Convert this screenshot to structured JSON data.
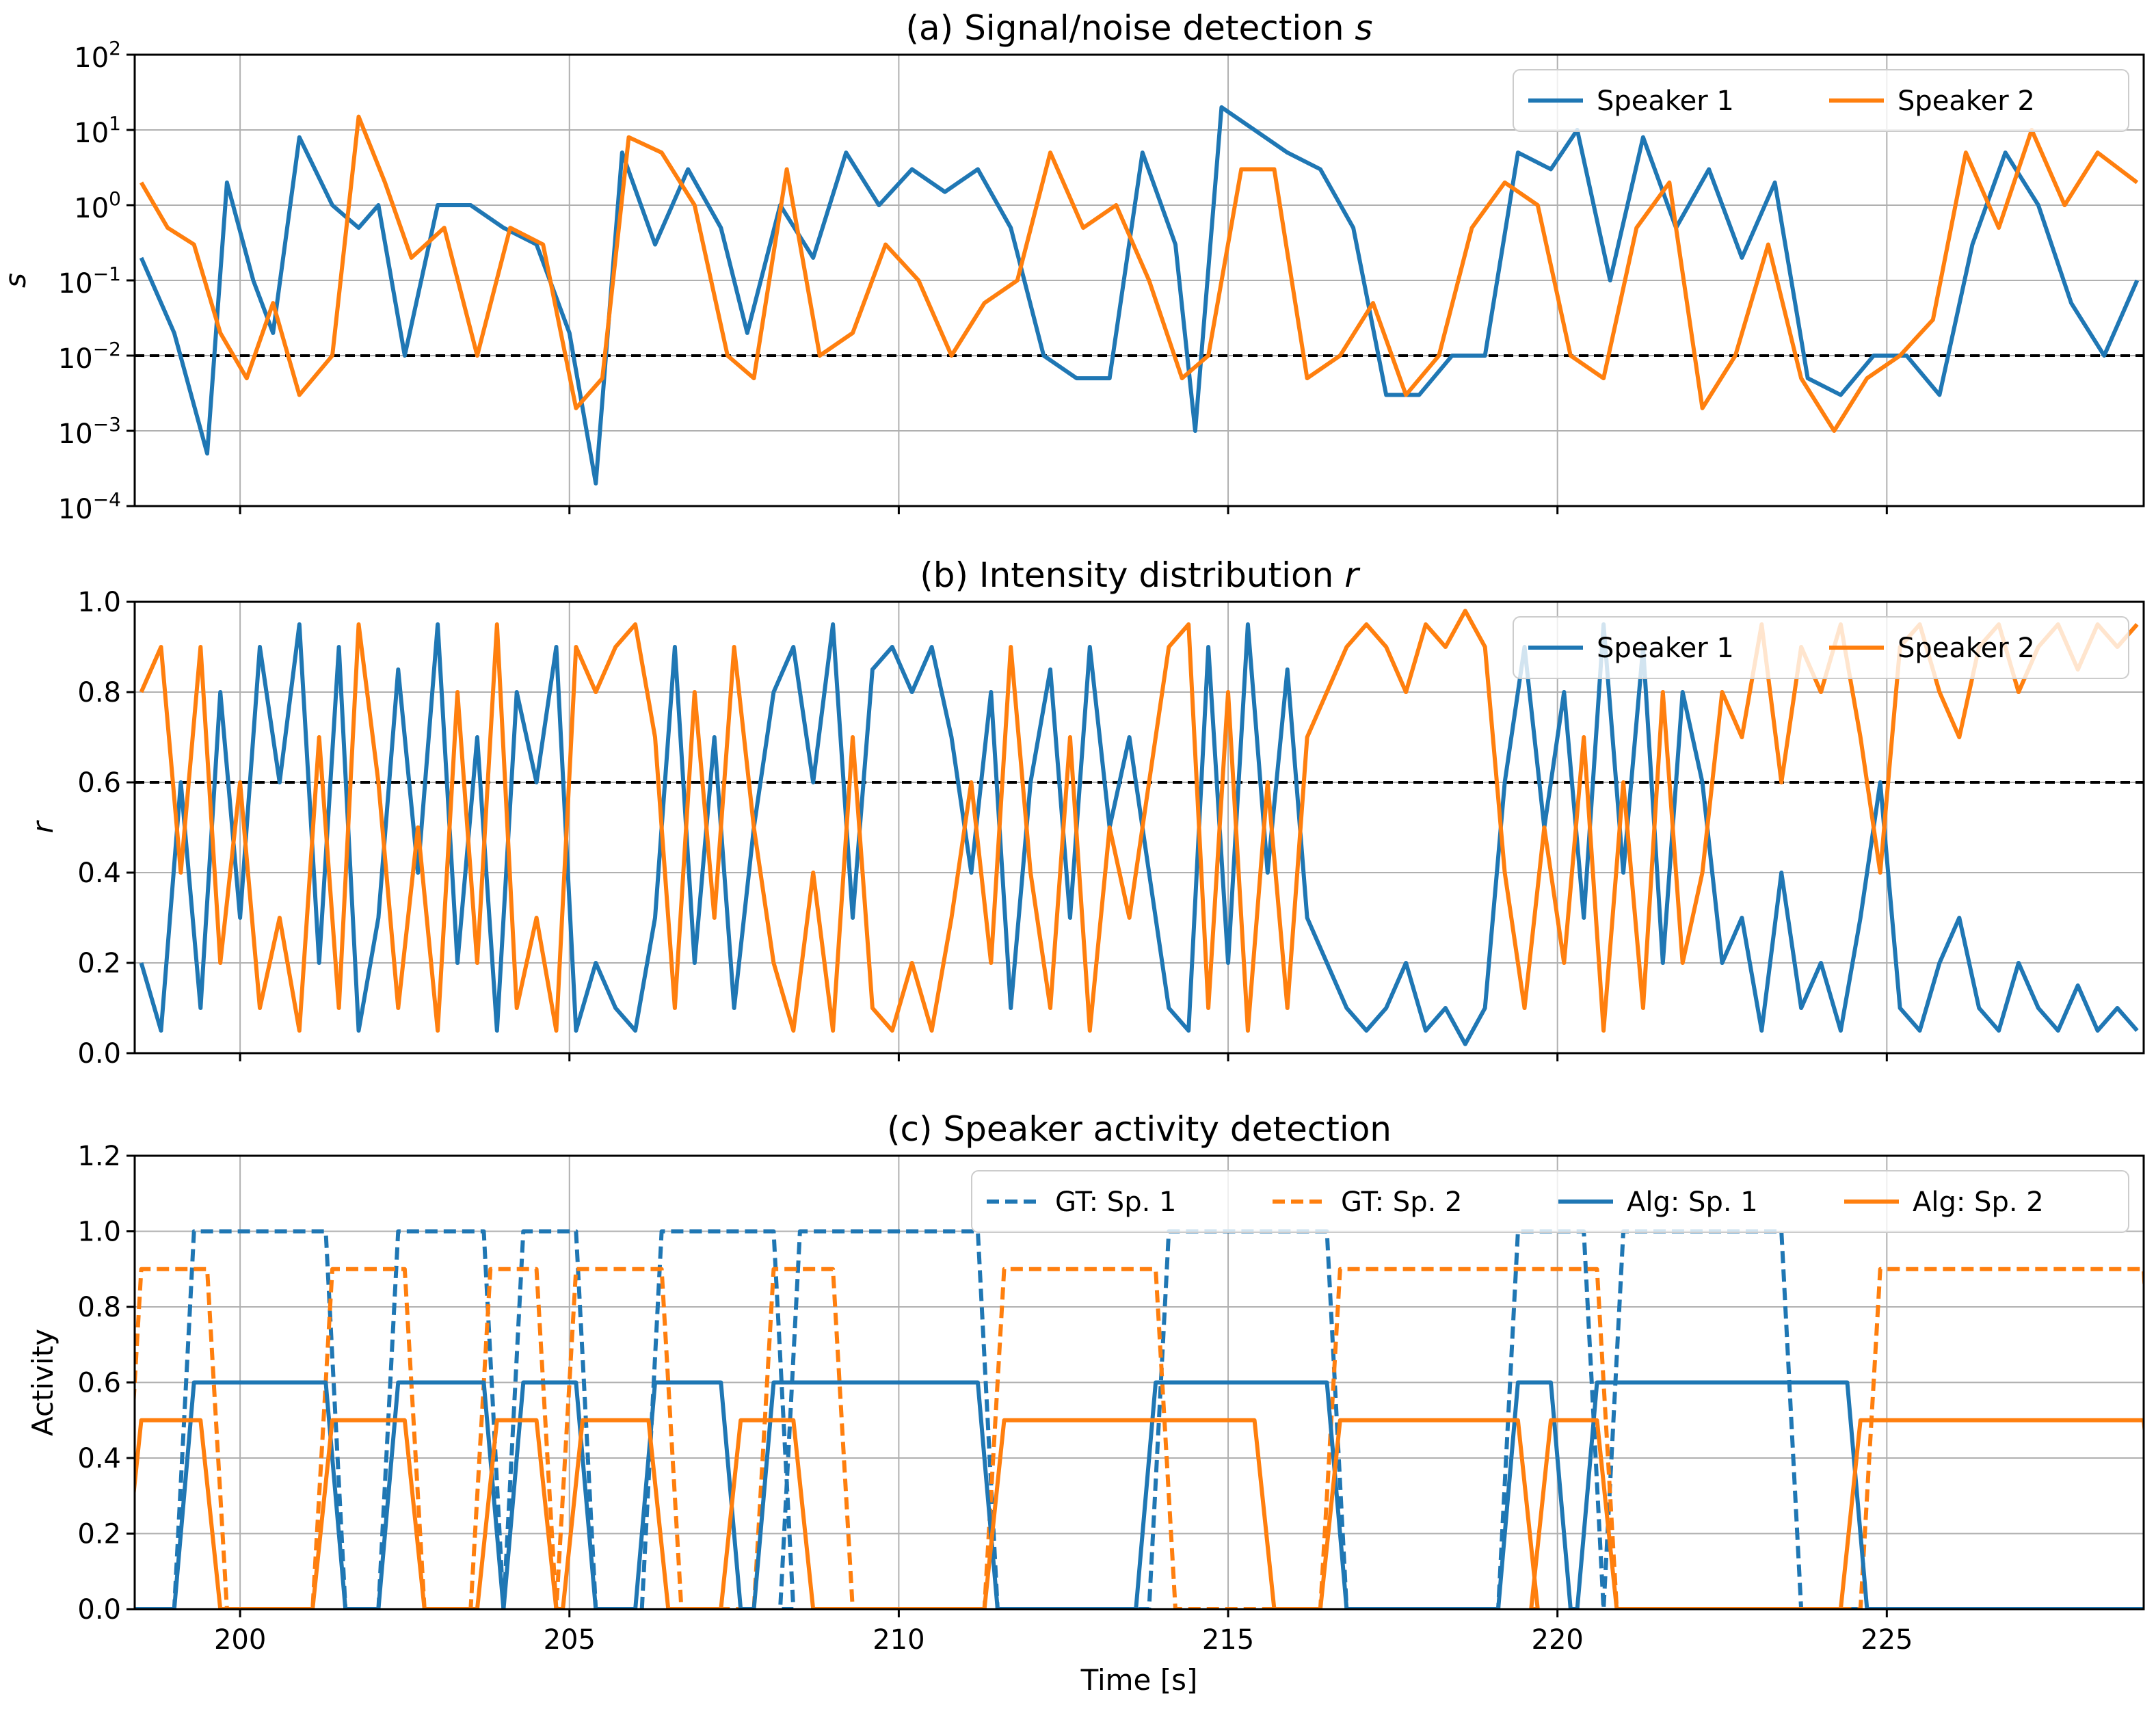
{
  "colors": {
    "speaker1": "#1f77b4",
    "speaker2": "#ff7f0e",
    "threshold": "#000000",
    "grid": "#b0b0b0"
  },
  "chart_data": [
    {
      "type": "line",
      "title": "(a) Signal/noise detection s",
      "xlabel": "",
      "ylabel": "s",
      "yscale": "log",
      "xlim": [
        198.4,
        228.9
      ],
      "ylim": [
        0.0001,
        100
      ],
      "xticks": [
        200,
        205,
        210,
        215,
        220,
        225
      ],
      "yticks": [
        "10^-4",
        "10^-3",
        "10^-2",
        "10^-1",
        "10^0",
        "10^1",
        "10^2"
      ],
      "grid": true,
      "legend_position": "top-right",
      "threshold": 0.01,
      "series": [
        {
          "name": "Speaker 1",
          "x": [
            198.5,
            199.0,
            199.5,
            199.8,
            200.2,
            200.5,
            200.9,
            201.4,
            201.8,
            202.1,
            202.5,
            203.0,
            203.5,
            204.0,
            204.5,
            205.0,
            205.4,
            205.8,
            206.3,
            206.8,
            207.3,
            207.7,
            208.2,
            208.7,
            209.2,
            209.7,
            210.2,
            210.7,
            211.2,
            211.7,
            212.2,
            212.7,
            213.2,
            213.7,
            214.2,
            214.5,
            214.9,
            215.4,
            215.9,
            216.4,
            216.9,
            217.4,
            217.9,
            218.4,
            218.9,
            219.4,
            219.9,
            220.3,
            220.8,
            221.3,
            221.8,
            222.3,
            222.8,
            223.3,
            223.8,
            224.3,
            224.8,
            225.3,
            225.8,
            226.3,
            226.8,
            227.3,
            227.8,
            228.3,
            228.8
          ],
          "y": [
            0.2,
            0.02,
            0.0005,
            2.0,
            0.1,
            0.02,
            8.0,
            1.0,
            0.5,
            1.0,
            0.01,
            1.0,
            1.0,
            0.5,
            0.3,
            0.02,
            0.0002,
            5.0,
            0.3,
            3.0,
            0.5,
            0.02,
            1.0,
            0.2,
            5.0,
            1.0,
            3.0,
            1.5,
            3.0,
            0.5,
            0.01,
            0.005,
            0.005,
            5.0,
            0.3,
            0.001,
            20.0,
            10.0,
            5.0,
            3.0,
            0.5,
            0.003,
            0.003,
            0.01,
            0.01,
            5.0,
            3.0,
            10.0,
            0.1,
            8.0,
            0.5,
            3.0,
            0.2,
            2.0,
            0.005,
            0.003,
            0.01,
            0.01,
            0.003,
            0.3,
            5.0,
            1.0,
            0.05,
            0.01,
            0.1
          ]
        },
        {
          "name": "Speaker 2",
          "x": [
            198.5,
            198.9,
            199.3,
            199.7,
            200.1,
            200.5,
            200.9,
            201.4,
            201.8,
            202.2,
            202.6,
            203.1,
            203.6,
            204.1,
            204.6,
            205.1,
            205.5,
            205.9,
            206.4,
            206.9,
            207.4,
            207.8,
            208.3,
            208.8,
            209.3,
            209.8,
            210.3,
            210.8,
            211.3,
            211.8,
            212.3,
            212.8,
            213.3,
            213.8,
            214.3,
            214.7,
            215.2,
            215.7,
            216.2,
            216.7,
            217.2,
            217.7,
            218.2,
            218.7,
            219.2,
            219.7,
            220.2,
            220.7,
            221.2,
            221.7,
            222.2,
            222.7,
            223.2,
            223.7,
            224.2,
            224.7,
            225.2,
            225.7,
            226.2,
            226.7,
            227.2,
            227.7,
            228.2,
            228.8
          ],
          "y": [
            2.0,
            0.5,
            0.3,
            0.02,
            0.005,
            0.05,
            0.003,
            0.01,
            15.0,
            2.0,
            0.2,
            0.5,
            0.01,
            0.5,
            0.3,
            0.002,
            0.005,
            8.0,
            5.0,
            1.0,
            0.01,
            0.005,
            3.0,
            0.01,
            0.02,
            0.3,
            0.1,
            0.01,
            0.05,
            0.1,
            5.0,
            0.5,
            1.0,
            0.1,
            0.005,
            0.01,
            3.0,
            3.0,
            0.005,
            0.01,
            0.05,
            0.003,
            0.01,
            0.5,
            2.0,
            1.0,
            0.01,
            0.005,
            0.5,
            2.0,
            0.002,
            0.01,
            0.3,
            0.005,
            0.001,
            0.005,
            0.01,
            0.03,
            5.0,
            0.5,
            10.0,
            1.0,
            5.0,
            2.0
          ]
        }
      ]
    },
    {
      "type": "line",
      "title": "(b) Intensity distribution r",
      "xlabel": "",
      "ylabel": "r",
      "xlim": [
        198.4,
        228.9
      ],
      "ylim": [
        0.0,
        1.0
      ],
      "xticks": [
        200,
        205,
        210,
        215,
        220,
        225
      ],
      "yticks": [
        "0.0",
        "0.2",
        "0.4",
        "0.6",
        "0.8",
        "1.0"
      ],
      "grid": true,
      "legend_position": "top-right",
      "threshold": 0.6,
      "series": [
        {
          "name": "Speaker 1",
          "x": [
            198.5,
            198.8,
            199.1,
            199.4,
            199.7,
            200.0,
            200.3,
            200.6,
            200.9,
            201.2,
            201.5,
            201.8,
            202.1,
            202.4,
            202.7,
            203.0,
            203.3,
            203.6,
            203.9,
            204.2,
            204.5,
            204.8,
            205.1,
            205.4,
            205.7,
            206.0,
            206.3,
            206.6,
            206.9,
            207.2,
            207.5,
            207.8,
            208.1,
            208.4,
            208.7,
            209.0,
            209.3,
            209.6,
            209.9,
            210.2,
            210.5,
            210.8,
            211.1,
            211.4,
            211.7,
            212.0,
            212.3,
            212.6,
            212.9,
            213.2,
            213.5,
            213.8,
            214.1,
            214.4,
            214.7,
            215.0,
            215.3,
            215.6,
            215.9,
            216.2,
            216.5,
            216.8,
            217.1,
            217.4,
            217.7,
            218.0,
            218.3,
            218.6,
            218.9,
            219.2,
            219.5,
            219.8,
            220.1,
            220.4,
            220.7,
            221.0,
            221.3,
            221.6,
            221.9,
            222.2,
            222.5,
            222.8,
            223.1,
            223.4,
            223.7,
            224.0,
            224.3,
            224.6,
            224.9,
            225.2,
            225.5,
            225.8,
            226.1,
            226.4,
            226.7,
            227.0,
            227.3,
            227.6,
            227.9,
            228.2,
            228.5,
            228.8
          ],
          "y": [
            0.2,
            0.05,
            0.6,
            0.1,
            0.8,
            0.3,
            0.9,
            0.6,
            0.95,
            0.2,
            0.9,
            0.05,
            0.3,
            0.85,
            0.4,
            0.95,
            0.2,
            0.7,
            0.05,
            0.8,
            0.6,
            0.9,
            0.05,
            0.2,
            0.1,
            0.05,
            0.3,
            0.9,
            0.2,
            0.7,
            0.1,
            0.5,
            0.8,
            0.9,
            0.6,
            0.95,
            0.3,
            0.85,
            0.9,
            0.8,
            0.9,
            0.7,
            0.4,
            0.8,
            0.1,
            0.6,
            0.85,
            0.3,
            0.9,
            0.5,
            0.7,
            0.4,
            0.1,
            0.05,
            0.9,
            0.2,
            0.95,
            0.4,
            0.85,
            0.3,
            0.2,
            0.1,
            0.05,
            0.1,
            0.2,
            0.05,
            0.1,
            0.02,
            0.1,
            0.6,
            0.9,
            0.5,
            0.8,
            0.3,
            0.95,
            0.4,
            0.9,
            0.2,
            0.8,
            0.6,
            0.2,
            0.3,
            0.05,
            0.4,
            0.1,
            0.2,
            0.05,
            0.3,
            0.6,
            0.1,
            0.05,
            0.2,
            0.3,
            0.1,
            0.05,
            0.2,
            0.1,
            0.05,
            0.15,
            0.05,
            0.1,
            0.05
          ]
        },
        {
          "name": "Speaker 2",
          "x": [
            198.5,
            198.8,
            199.1,
            199.4,
            199.7,
            200.0,
            200.3,
            200.6,
            200.9,
            201.2,
            201.5,
            201.8,
            202.1,
            202.4,
            202.7,
            203.0,
            203.3,
            203.6,
            203.9,
            204.2,
            204.5,
            204.8,
            205.1,
            205.4,
            205.7,
            206.0,
            206.3,
            206.6,
            206.9,
            207.2,
            207.5,
            207.8,
            208.1,
            208.4,
            208.7,
            209.0,
            209.3,
            209.6,
            209.9,
            210.2,
            210.5,
            210.8,
            211.1,
            211.4,
            211.7,
            212.0,
            212.3,
            212.6,
            212.9,
            213.2,
            213.5,
            213.8,
            214.1,
            214.4,
            214.7,
            215.0,
            215.3,
            215.6,
            215.9,
            216.2,
            216.5,
            216.8,
            217.1,
            217.4,
            217.7,
            218.0,
            218.3,
            218.6,
            218.9,
            219.2,
            219.5,
            219.8,
            220.1,
            220.4,
            220.7,
            221.0,
            221.3,
            221.6,
            221.9,
            222.2,
            222.5,
            222.8,
            223.1,
            223.4,
            223.7,
            224.0,
            224.3,
            224.6,
            224.9,
            225.2,
            225.5,
            225.8,
            226.1,
            226.4,
            226.7,
            227.0,
            227.3,
            227.6,
            227.9,
            228.2,
            228.5,
            228.8
          ],
          "y": [
            0.8,
            0.9,
            0.4,
            0.9,
            0.2,
            0.6,
            0.1,
            0.3,
            0.05,
            0.7,
            0.1,
            0.95,
            0.6,
            0.1,
            0.5,
            0.05,
            0.8,
            0.2,
            0.95,
            0.1,
            0.3,
            0.05,
            0.9,
            0.8,
            0.9,
            0.95,
            0.7,
            0.1,
            0.8,
            0.3,
            0.9,
            0.5,
            0.2,
            0.05,
            0.4,
            0.05,
            0.7,
            0.1,
            0.05,
            0.2,
            0.05,
            0.3,
            0.6,
            0.2,
            0.9,
            0.4,
            0.1,
            0.7,
            0.05,
            0.5,
            0.3,
            0.6,
            0.9,
            0.95,
            0.1,
            0.8,
            0.05,
            0.6,
            0.1,
            0.7,
            0.8,
            0.9,
            0.95,
            0.9,
            0.8,
            0.95,
            0.9,
            0.98,
            0.9,
            0.4,
            0.1,
            0.5,
            0.2,
            0.7,
            0.05,
            0.6,
            0.1,
            0.8,
            0.2,
            0.4,
            0.8,
            0.7,
            0.95,
            0.6,
            0.9,
            0.8,
            0.95,
            0.7,
            0.4,
            0.9,
            0.95,
            0.8,
            0.7,
            0.9,
            0.95,
            0.8,
            0.9,
            0.95,
            0.85,
            0.95,
            0.9,
            0.95
          ]
        }
      ]
    },
    {
      "type": "line",
      "title": "(c) Speaker activity detection",
      "xlabel": "Time [s]",
      "ylabel": "Activity",
      "xlim": [
        198.4,
        228.9
      ],
      "ylim": [
        0.0,
        1.2
      ],
      "xticks": [
        200,
        205,
        210,
        215,
        220,
        225
      ],
      "yticks": [
        "0.0",
        "0.2",
        "0.4",
        "0.6",
        "0.8",
        "1.0",
        "1.2"
      ],
      "grid": true,
      "legend_position": "top-right",
      "series": [
        {
          "name": "GT: Sp. 1",
          "style": "dashed",
          "segments": [
            [
              199.3,
              201.3
            ],
            [
              202.4,
              203.7
            ],
            [
              204.3,
              205.1
            ],
            [
              206.4,
              208.1
            ],
            [
              208.5,
              211.2
            ],
            [
              214.1,
              216.5
            ],
            [
              219.4,
              220.4
            ],
            [
              221.0,
              223.4
            ]
          ],
          "level": 1.0
        },
        {
          "name": "GT: Sp. 2",
          "style": "dashed",
          "segments": [
            [
              198.5,
              199.5
            ],
            [
              201.4,
              202.5
            ],
            [
              203.8,
              204.5
            ],
            [
              205.1,
              206.4
            ],
            [
              208.1,
              209.0
            ],
            [
              211.6,
              213.9
            ],
            [
              216.7,
              220.6
            ],
            [
              224.9,
              228.9
            ]
          ],
          "level": 0.9
        },
        {
          "name": "Alg: Sp. 1",
          "style": "solid",
          "segments": [
            [
              199.3,
              201.3
            ],
            [
              202.4,
              203.7
            ],
            [
              204.3,
              205.1
            ],
            [
              206.3,
              207.3
            ],
            [
              208.1,
              211.2
            ],
            [
              213.9,
              216.5
            ],
            [
              219.4,
              219.9
            ],
            [
              220.6,
              224.4
            ]
          ],
          "level": 0.6
        },
        {
          "name": "Alg: Sp. 2",
          "style": "solid",
          "segments": [
            [
              198.5,
              199.4
            ],
            [
              201.4,
              202.5
            ],
            [
              203.9,
              204.5
            ],
            [
              205.2,
              206.2
            ],
            [
              207.6,
              208.4
            ],
            [
              211.6,
              215.4
            ],
            [
              216.7,
              219.4
            ],
            [
              219.9,
              220.6
            ],
            [
              224.6,
              228.9
            ]
          ],
          "level": 0.5
        }
      ]
    }
  ]
}
